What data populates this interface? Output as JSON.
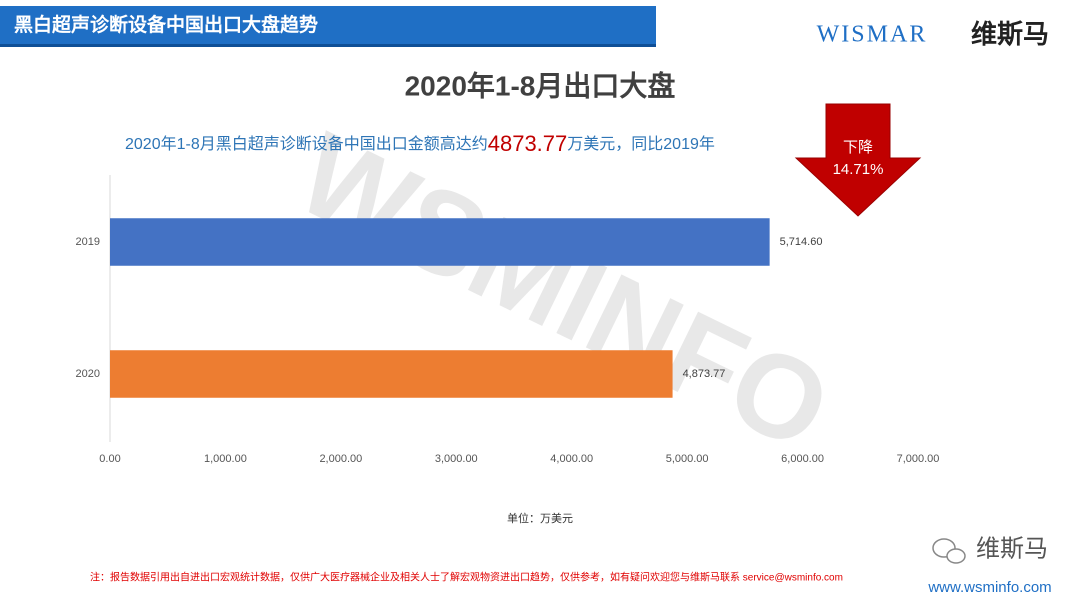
{
  "header": {
    "banner": "黑白超声诊断设备中国出口大盘趋势",
    "logo_en": "WISMAR",
    "logo_cn": "维斯马"
  },
  "chart_data": {
    "type": "barh",
    "title": "2020年1-8月出口大盘",
    "subtitle_prefix": "2020年1-8月黑白超声诊断设备中国出口金额高达约",
    "subtitle_value": 4873.77,
    "subtitle_suffix": "万美元，同比2019年",
    "change_label": "下降",
    "change_value": "14.71%",
    "categories": [
      "2019",
      "2020"
    ],
    "values": [
      5714.6,
      4873.77
    ],
    "value_labels": [
      "5,714.60",
      "4,873.77"
    ],
    "colors": [
      "#4472c4",
      "#ed7d31"
    ],
    "xlim": [
      0,
      7000
    ],
    "xticks": [
      {
        "value": 0,
        "label": "0.00"
      },
      {
        "value": 1000,
        "label": "1,000.00"
      },
      {
        "value": 2000,
        "label": "2,000.00"
      },
      {
        "value": 3000,
        "label": "3,000.00"
      },
      {
        "value": 4000,
        "label": "4,000.00"
      },
      {
        "value": 5000,
        "label": "5,000.00"
      },
      {
        "value": 6000,
        "label": "6,000.00"
      },
      {
        "value": 7000,
        "label": "7,000.00"
      }
    ],
    "x_label": "单位：万美元",
    "watermark": "WSMINFO"
  },
  "footer": {
    "note": "注：报告数据引用出自进出口宏观统计数据，仅供广大医疗器械企业及相关人士了解宏观物资进出口趋势，仅供参考，如有疑问欢迎您与维斯马联系  service@wsminfo.com",
    "wechat": "维斯马",
    "url": "www.wsminfo.com"
  }
}
